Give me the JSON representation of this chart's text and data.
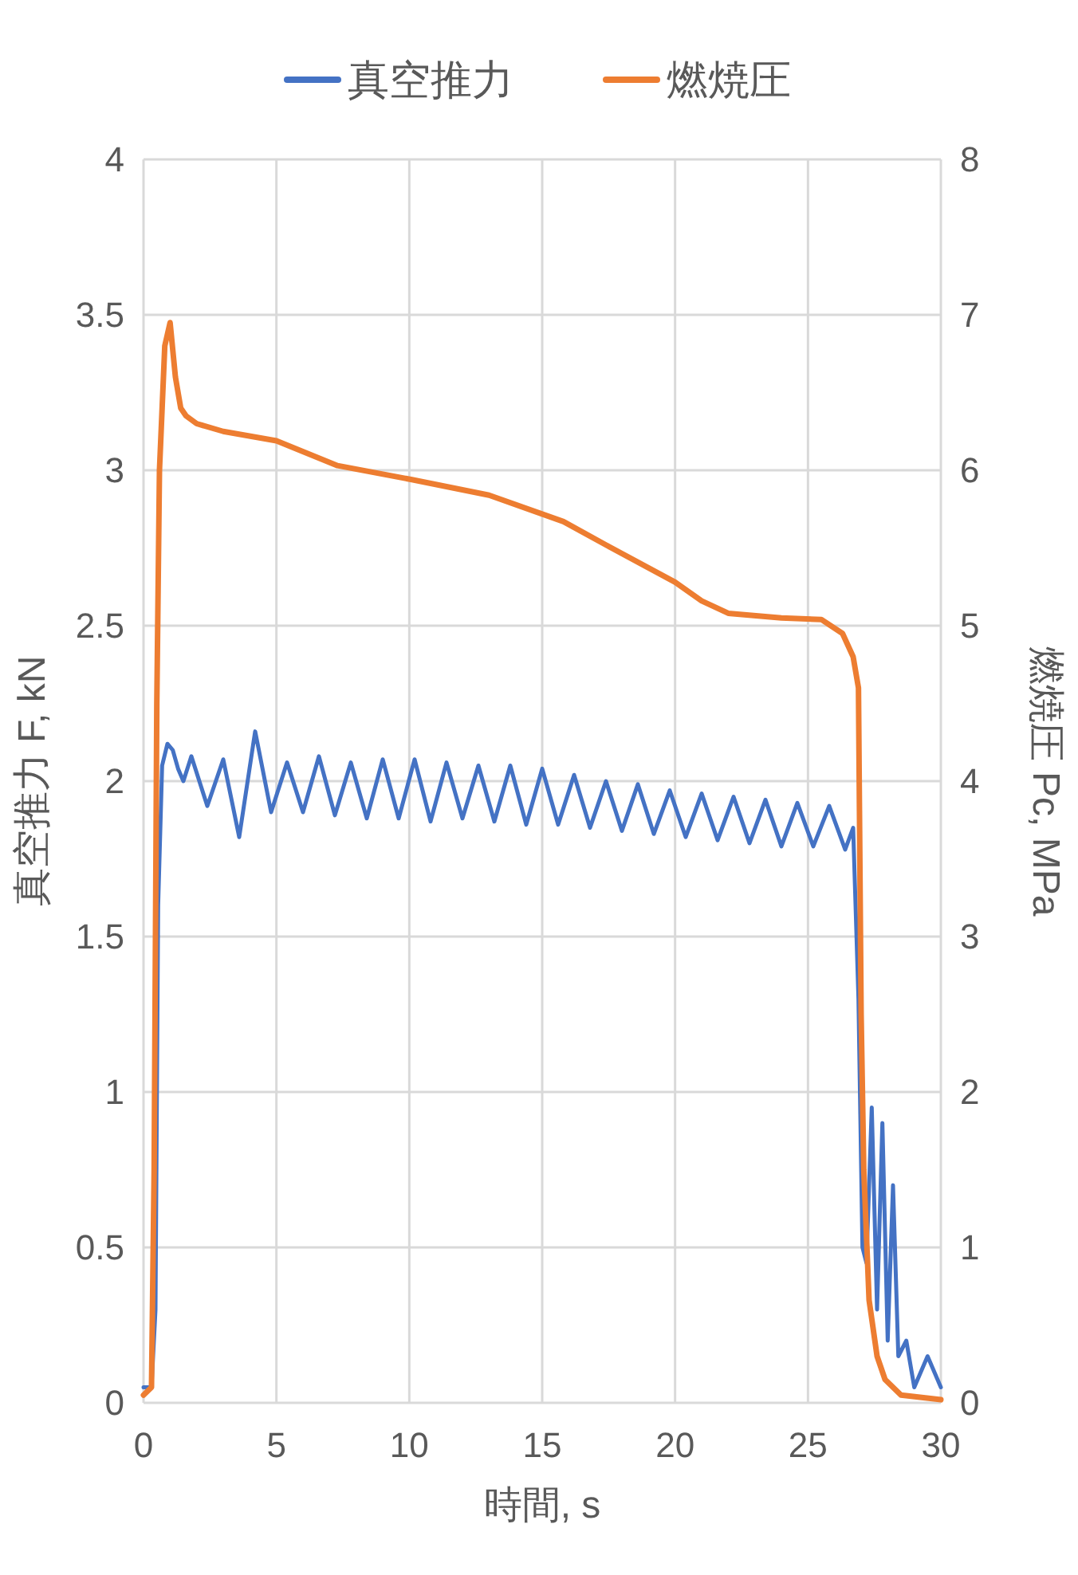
{
  "chart_data": {
    "type": "line",
    "xlabel": "時間, s",
    "ylabel": "真空推力 F, kN",
    "y2label": "燃焼圧 Pc, MPa",
    "xlim": [
      0,
      30
    ],
    "xticks": [
      0,
      5,
      10,
      15,
      20,
      25,
      30
    ],
    "ylim": [
      0,
      4
    ],
    "yticks": [
      0,
      0.5,
      1,
      1.5,
      2,
      2.5,
      3,
      3.5,
      4
    ],
    "y2lim": [
      0,
      8
    ],
    "y2ticks": [
      0,
      1,
      2,
      3,
      4,
      5,
      6,
      7,
      8
    ],
    "grid": true,
    "legend": "top",
    "series": [
      {
        "name": "真空推力",
        "color": "#4472c4",
        "x": [
          0,
          0.3,
          0.45,
          0.55,
          0.7,
          0.9,
          1.1,
          1.3,
          1.5,
          1.8,
          2.4,
          3.0,
          3.6,
          4.2,
          4.8,
          5.4,
          6.0,
          6.6,
          7.2,
          7.8,
          8.4,
          9.0,
          9.6,
          10.2,
          10.8,
          11.4,
          12.0,
          12.6,
          13.2,
          13.8,
          14.4,
          15.0,
          15.6,
          16.2,
          16.8,
          17.4,
          18.0,
          18.6,
          19.2,
          19.8,
          20.4,
          21.0,
          21.6,
          22.2,
          22.8,
          23.4,
          24.0,
          24.6,
          25.2,
          25.8,
          26.4,
          26.7,
          26.9,
          27.05,
          27.2,
          27.4,
          27.6,
          27.8,
          28.0,
          28.2,
          28.4,
          28.7,
          29,
          29.5,
          30
        ],
        "values": [
          0.05,
          0.05,
          0.3,
          1.6,
          2.05,
          2.12,
          2.1,
          2.04,
          2.0,
          2.08,
          1.92,
          2.07,
          1.82,
          2.16,
          1.9,
          2.06,
          1.9,
          2.08,
          1.89,
          2.06,
          1.88,
          2.07,
          1.88,
          2.07,
          1.87,
          2.06,
          1.88,
          2.05,
          1.87,
          2.05,
          1.86,
          2.04,
          1.86,
          2.02,
          1.85,
          2.0,
          1.84,
          1.99,
          1.83,
          1.97,
          1.82,
          1.96,
          1.81,
          1.95,
          1.8,
          1.94,
          1.79,
          1.93,
          1.79,
          1.92,
          1.78,
          1.85,
          1.3,
          0.5,
          0.45,
          0.95,
          0.3,
          0.9,
          0.2,
          0.7,
          0.15,
          0.2,
          0.05,
          0.15,
          0.05
        ]
      },
      {
        "name": "燃焼圧",
        "color": "#ed7d31",
        "axis": "y2",
        "x": [
          0,
          0.3,
          0.4,
          0.5,
          0.6,
          0.8,
          1.0,
          1.2,
          1.4,
          1.6,
          2,
          3,
          5,
          7.3,
          10.1,
          13,
          15.8,
          17.5,
          20,
          21,
          22,
          24,
          25.5,
          26.3,
          26.7,
          26.9,
          27.0,
          27.1,
          27.3,
          27.6,
          27.9,
          28.5,
          30
        ],
        "values": [
          0.05,
          0.1,
          1.5,
          4.5,
          6.0,
          6.8,
          6.95,
          6.6,
          6.4,
          6.35,
          6.3,
          6.25,
          6.19,
          6.03,
          5.94,
          5.84,
          5.67,
          5.51,
          5.28,
          5.16,
          5.08,
          5.05,
          5.04,
          4.95,
          4.8,
          4.6,
          2.5,
          1.5,
          0.66,
          0.3,
          0.15,
          0.05,
          0.02
        ]
      }
    ]
  }
}
